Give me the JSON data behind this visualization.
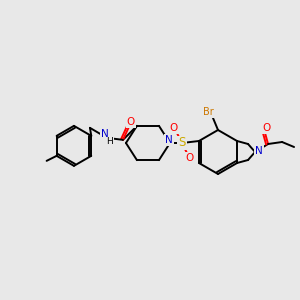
{
  "bg": "#e8e8e8",
  "C": "#000000",
  "N": "#0000cc",
  "O": "#ff0000",
  "S": "#ccaa00",
  "Br": "#cc7700",
  "lw": 1.4,
  "fs": 7.5
}
